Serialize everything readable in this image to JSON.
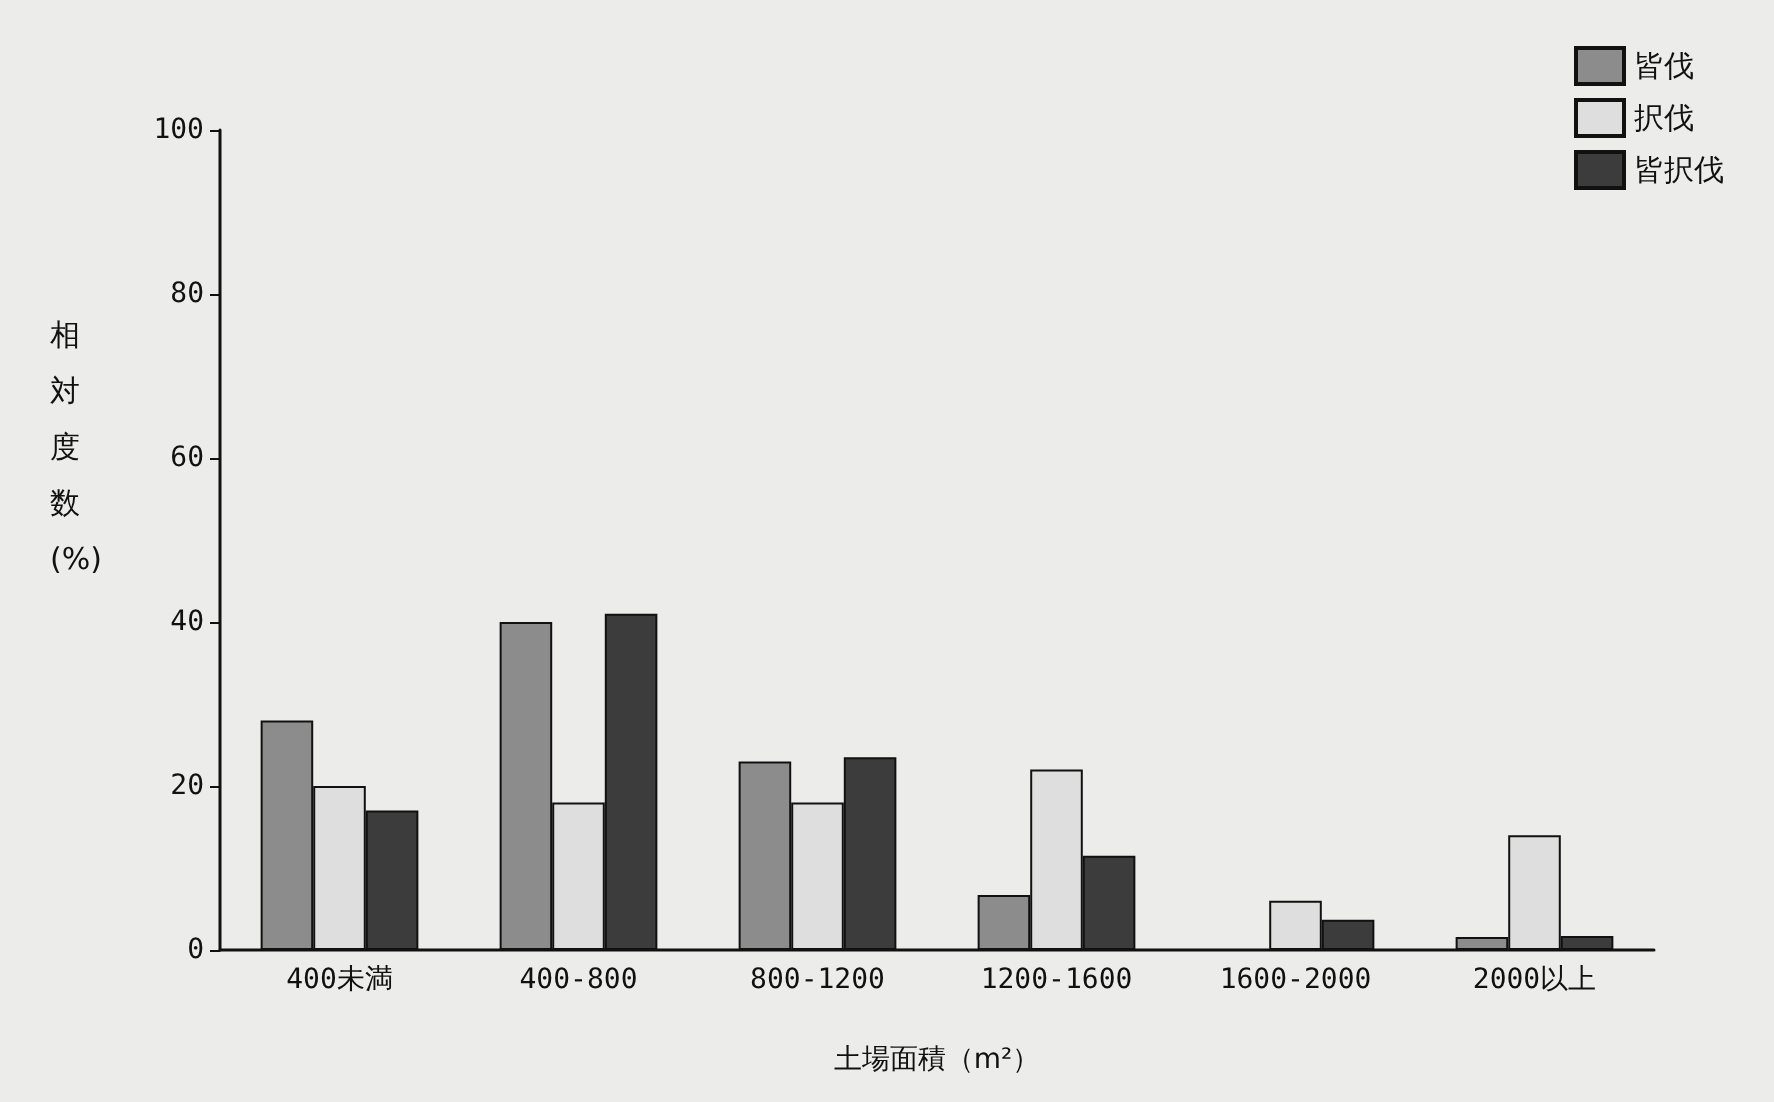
{
  "chart_data": {
    "type": "bar",
    "xlabel": "土場面積（m²）",
    "ylabel": "相対度数 (%)",
    "categories": [
      "400未満",
      "400-800",
      "800-1200",
      "1200-1600",
      "1600-2000",
      "2000以上"
    ],
    "series": [
      {
        "name": "皆伐",
        "color": "#8c8c8c",
        "values": [
          28,
          40,
          23,
          6.7,
          null,
          1.6
        ]
      },
      {
        "name": "択伐",
        "color": "#dedede",
        "values": [
          20,
          18,
          18,
          22,
          6,
          14
        ]
      },
      {
        "name": "皆択伐",
        "color": "#3c3c3c",
        "values": [
          17,
          41,
          23.5,
          11.5,
          3.7,
          1.7
        ]
      }
    ],
    "ylim": [
      0,
      100
    ],
    "yticks": [
      0,
      20,
      40,
      60,
      80,
      100
    ],
    "grid": false,
    "legend": "top right"
  }
}
